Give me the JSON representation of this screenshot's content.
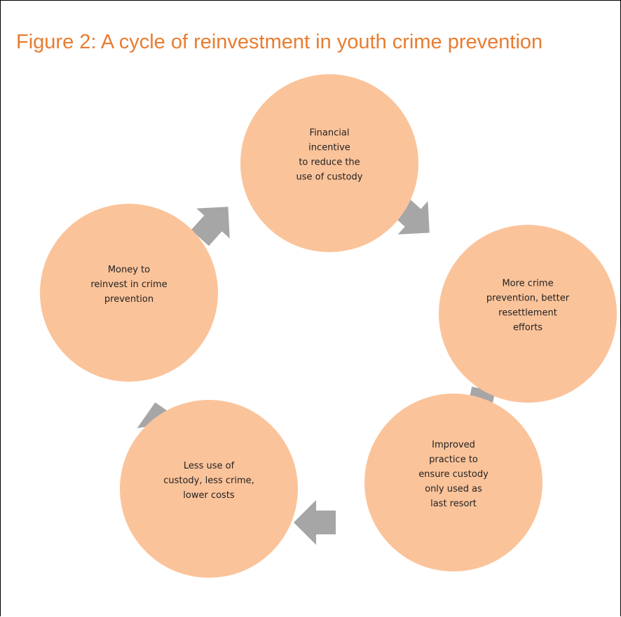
{
  "title": "Figure 2: A cycle of reinvestment in youth crime prevention",
  "nodes": [
    {
      "lines": [
        "Financial",
        "incentive",
        "to reduce the",
        "use of custody"
      ]
    },
    {
      "lines": [
        "More crime",
        "prevention, better",
        "resettlement",
        "efforts"
      ]
    },
    {
      "lines": [
        "Improved",
        "practice to",
        "ensure custody",
        "only used as",
        "last resort"
      ]
    },
    {
      "lines": [
        "Less use of",
        "custody, less crime,",
        "lower costs"
      ]
    },
    {
      "lines": [
        "Money to",
        "reinvest in crime",
        "prevention"
      ]
    }
  ]
}
